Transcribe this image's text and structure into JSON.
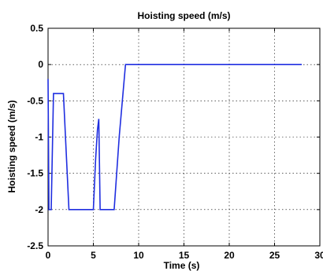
{
  "chart_data": {
    "type": "line",
    "title": "Hoisting speed (m/s)",
    "xlabel": "Time (s)",
    "ylabel": "Hoisting speed (m/s)",
    "xlim": [
      0,
      30
    ],
    "ylim": [
      -2.5,
      0.5
    ],
    "xticks": [
      "0",
      "5",
      "10",
      "15",
      "20",
      "25",
      "30"
    ],
    "yticks": [
      "0.5",
      "0",
      "-0.5",
      "-1",
      "-1.5",
      "-2",
      "-2.5"
    ],
    "grid": true,
    "line_color": "#1f2ee0",
    "series": [
      {
        "x": [
          0,
          0.1,
          0.35,
          0.6,
          1.05,
          1.7,
          2.3,
          5.0,
          5.25,
          5.45,
          5.6,
          5.75,
          6.05,
          7.3,
          7.85,
          8.2,
          8.55,
          28.0
        ],
        "y": [
          -0.2,
          -2.0,
          -2.0,
          -0.4,
          -0.4,
          -0.4,
          -2.0,
          -2.0,
          -1.3,
          -0.9,
          -0.75,
          -2.0,
          -2.0,
          -2.0,
          -1.0,
          -0.5,
          0.0,
          0.0
        ]
      }
    ]
  }
}
